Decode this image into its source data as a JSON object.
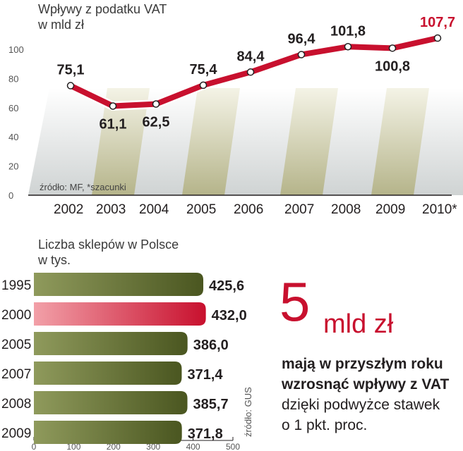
{
  "chart_data": [
    {
      "type": "line",
      "title": "Wpływy z podatku VAT",
      "subtitle": "w mld zł",
      "categories": [
        "2002",
        "2003",
        "2004",
        "2005",
        "2006",
        "2007",
        "2008",
        "2009",
        "2010*"
      ],
      "values": [
        75.1,
        61.1,
        62.5,
        75.4,
        84.4,
        96.4,
        101.8,
        100.8,
        107.7
      ],
      "value_labels": [
        "75,1",
        "61,1",
        "62,5",
        "75,4",
        "84,4",
        "96,4",
        "101,8",
        "100,8",
        "107,7"
      ],
      "yticks": [
        "0",
        "20",
        "40",
        "60",
        "80",
        "100"
      ],
      "ylim": [
        0,
        110
      ],
      "source": "źródło: MF, *szacunki",
      "colors": {
        "line": "#c8102e",
        "highlight_label": "#c8102e"
      }
    },
    {
      "type": "bar",
      "orientation": "horizontal",
      "title": "Liczba sklepów w Polsce",
      "subtitle": "w tys.",
      "categories": [
        "1995",
        "2000",
        "2005",
        "2007",
        "2008",
        "2009"
      ],
      "values": [
        425.6,
        432.0,
        386.0,
        371.4,
        385.7,
        371.8
      ],
      "value_labels": [
        "425,6",
        "432,0",
        "386,0",
        "371,4",
        "385,7",
        "371,8"
      ],
      "highlight_index": 1,
      "xticks": [
        "0",
        "100",
        "200",
        "300",
        "400",
        "500"
      ],
      "xlim": [
        0,
        500
      ],
      "source": "źródło: GUS",
      "colors": {
        "bar": "#5c6b2a",
        "highlight": "#c8102e"
      }
    }
  ],
  "callout": {
    "number": "5",
    "unit": "mld zł",
    "line1": "mają w przyszłym roku",
    "line2": "wzrosnąć wpływy z VAT",
    "line3": "dzięki podwyżce stawek",
    "line4": "o 1 pkt. proc."
  }
}
